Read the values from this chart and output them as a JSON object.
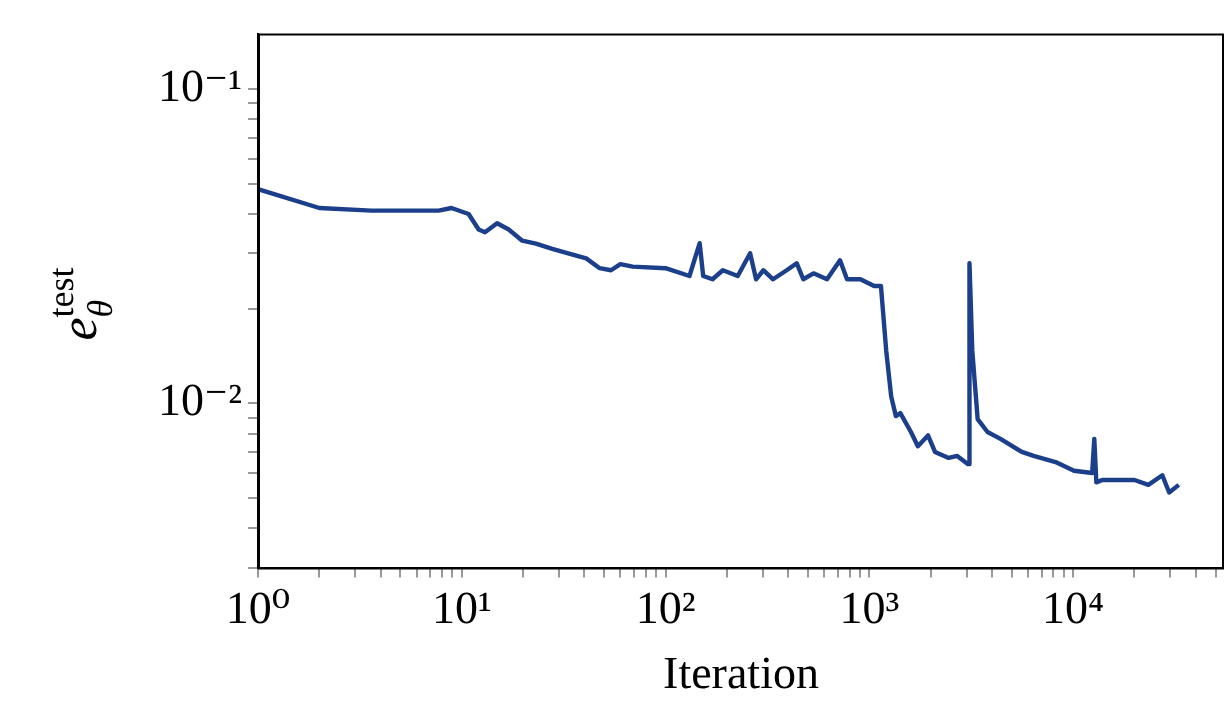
{
  "chart_data": {
    "type": "line",
    "xlabel": "Iteration",
    "ylabel": "e$_{θ}$$^{test}$",
    "log": "xy",
    "xlim": [
      1,
      55000
    ],
    "ylim": [
      0.003,
      0.15
    ],
    "xticks": [
      {
        "value": 1,
        "label": "10⁰"
      },
      {
        "value": 2,
        "label": null
      },
      {
        "value": 3,
        "label": null
      },
      {
        "value": 4,
        "label": null
      },
      {
        "value": 5,
        "label": null
      },
      {
        "value": 6,
        "label": null
      },
      {
        "value": 7,
        "label": null
      },
      {
        "value": 8,
        "label": null
      },
      {
        "value": 9,
        "label": null
      },
      {
        "value": 10,
        "label": "10¹"
      },
      {
        "value": 20,
        "label": null
      },
      {
        "value": 30,
        "label": null
      },
      {
        "value": 40,
        "label": null
      },
      {
        "value": 50,
        "label": null
      },
      {
        "value": 60,
        "label": null
      },
      {
        "value": 70,
        "label": null
      },
      {
        "value": 80,
        "label": null
      },
      {
        "value": 90,
        "label": null
      },
      {
        "value": 100,
        "label": "10²"
      },
      {
        "value": 200,
        "label": null
      },
      {
        "value": 300,
        "label": null
      },
      {
        "value": 400,
        "label": null
      },
      {
        "value": 500,
        "label": null
      },
      {
        "value": 600,
        "label": null
      },
      {
        "value": 700,
        "label": null
      },
      {
        "value": 800,
        "label": null
      },
      {
        "value": 900,
        "label": null
      },
      {
        "value": 1000,
        "label": "10³"
      },
      {
        "value": 2000,
        "label": null
      },
      {
        "value": 3000,
        "label": null
      },
      {
        "value": 4000,
        "label": null
      },
      {
        "value": 5000,
        "label": null
      },
      {
        "value": 6000,
        "label": null
      },
      {
        "value": 7000,
        "label": null
      },
      {
        "value": 8000,
        "label": null
      },
      {
        "value": 9000,
        "label": null
      },
      {
        "value": 10000,
        "label": "10⁴"
      },
      {
        "value": 20000,
        "label": null
      },
      {
        "value": 30000,
        "label": null
      },
      {
        "value": 40000,
        "label": null
      },
      {
        "value": 50000,
        "label": null
      }
    ],
    "yticks": [
      {
        "value": 0.003,
        "label": null
      },
      {
        "value": 0.004,
        "label": null
      },
      {
        "value": 0.005,
        "label": null
      },
      {
        "value": 0.006,
        "label": null
      },
      {
        "value": 0.007,
        "label": null
      },
      {
        "value": 0.008,
        "label": null
      },
      {
        "value": 0.009,
        "label": null
      },
      {
        "value": 0.01,
        "label": "10⁻²"
      },
      {
        "value": 0.02,
        "label": null
      },
      {
        "value": 0.03,
        "label": null
      },
      {
        "value": 0.04,
        "label": null
      },
      {
        "value": 0.05,
        "label": null
      },
      {
        "value": 0.06,
        "label": null
      },
      {
        "value": 0.07,
        "label": null
      },
      {
        "value": 0.08,
        "label": null
      },
      {
        "value": 0.09,
        "label": null
      },
      {
        "value": 0.1,
        "label": "10⁻¹"
      }
    ],
    "marker": "none",
    "line_style": "solid",
    "series": [
      {
        "color": "#1c3f8c",
        "x": [
          1,
          2,
          3.6,
          5.2,
          7.7,
          8.9,
          10.8,
          12.1,
          13,
          14.9,
          17,
          19.8,
          23.1,
          27.8,
          35,
          40.8,
          47.5,
          54,
          60,
          69,
          100,
          131,
          147,
          153,
          170,
          191,
          226,
          260,
          278,
          302,
          337,
          393,
          440,
          474,
          532,
          620,
          718,
          777,
          904,
          1055,
          1140,
          1210,
          1280,
          1350,
          1420,
          1600,
          1730,
          1940,
          2100,
          2450,
          2700,
          3050,
          3100,
          3200,
          3400,
          3800,
          4400,
          5600,
          6400,
          8200,
          10100,
          12400,
          12700,
          13000,
          13900,
          20000,
          23400,
          27400,
          29600,
          33000
        ],
        "values": [
          0.048,
          0.0418,
          0.041,
          0.041,
          0.041,
          0.0418,
          0.04,
          0.0357,
          0.035,
          0.0374,
          0.0357,
          0.0329,
          0.0322,
          0.031,
          0.0297,
          0.0289,
          0.0269,
          0.0265,
          0.0277,
          0.0272,
          0.0269,
          0.0254,
          0.0323,
          0.0254,
          0.0248,
          0.0265,
          0.0254,
          0.03,
          0.0248,
          0.0265,
          0.0248,
          0.0265,
          0.0279,
          0.0248,
          0.0259,
          0.0248,
          0.0285,
          0.0248,
          0.0248,
          0.0236,
          0.0236,
          0.0147,
          0.0105,
          0.0091,
          0.0093,
          0.0081,
          0.0073,
          0.0079,
          0.007,
          0.0067,
          0.0068,
          0.0064,
          0.0279,
          0.0147,
          0.0089,
          0.0081,
          0.0077,
          0.007,
          0.0068,
          0.0065,
          0.0061,
          0.006,
          0.0077,
          0.0056,
          0.0057,
          0.0057,
          0.0055,
          0.0059,
          0.0052,
          0.0055
        ]
      }
    ]
  }
}
